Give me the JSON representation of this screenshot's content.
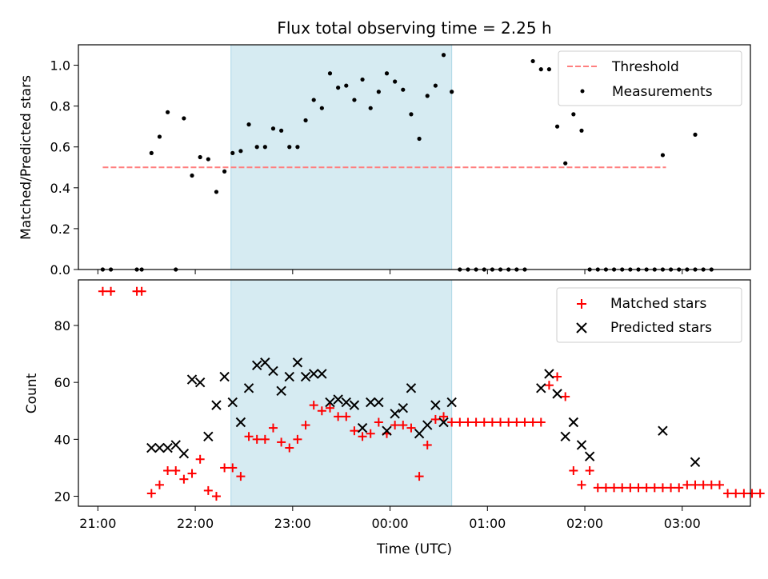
{
  "chart_data": [
    {
      "type": "scatter",
      "title": "Flux total observing time = 2.25 h",
      "ylabel": "Matched/Predicted stars",
      "xlabel": "",
      "ylim": [
        0,
        1.1
      ],
      "xlim": [
        20.8,
        3.7
      ],
      "yticks": [
        {
          "value": 0.0,
          "label": "0.0"
        },
        {
          "value": 0.2,
          "label": "0.2"
        },
        {
          "value": 0.4,
          "label": "0.4"
        },
        {
          "value": 0.6,
          "label": "0.6"
        },
        {
          "value": 0.8,
          "label": "0.8"
        },
        {
          "value": 1.0,
          "label": "1.0"
        }
      ],
      "shaded_span": {
        "x0": "22:22",
        "x1": "00:38",
        "color": "#add8e6"
      },
      "legend": {
        "position": "top-right",
        "entries": [
          "Threshold",
          "Measurements"
        ]
      },
      "series": [
        {
          "name": "Threshold",
          "style": "dashed-line",
          "color": "#ff7f7f",
          "points": [
            [
              "21:03",
              0.5
            ],
            [
              "02:50",
              0.5
            ]
          ]
        },
        {
          "name": "Measurements",
          "style": "dots",
          "color": "#000000",
          "points": [
            [
              "21:03",
              0.0
            ],
            [
              "21:08",
              0.0
            ],
            [
              "21:24",
              0.0
            ],
            [
              "21:27",
              0.0
            ],
            [
              "21:48",
              0.0
            ],
            [
              "21:33",
              0.57
            ],
            [
              "21:38",
              0.65
            ],
            [
              "21:43",
              0.77
            ],
            [
              "21:53",
              0.74
            ],
            [
              "21:58",
              0.46
            ],
            [
              "22:03",
              0.55
            ],
            [
              "22:08",
              0.54
            ],
            [
              "22:13",
              0.38
            ],
            [
              "22:18",
              0.48
            ],
            [
              "22:23",
              0.57
            ],
            [
              "22:28",
              0.58
            ],
            [
              "22:33",
              0.71
            ],
            [
              "22:38",
              0.6
            ],
            [
              "22:43",
              0.6
            ],
            [
              "22:48",
              0.69
            ],
            [
              "22:53",
              0.68
            ],
            [
              "22:58",
              0.6
            ],
            [
              "23:03",
              0.6
            ],
            [
              "23:08",
              0.73
            ],
            [
              "23:13",
              0.83
            ],
            [
              "23:18",
              0.79
            ],
            [
              "23:23",
              0.96
            ],
            [
              "23:28",
              0.89
            ],
            [
              "23:33",
              0.9
            ],
            [
              "23:38",
              0.83
            ],
            [
              "23:43",
              0.93
            ],
            [
              "23:48",
              0.79
            ],
            [
              "23:53",
              0.87
            ],
            [
              "23:58",
              0.96
            ],
            [
              "00:03",
              0.92
            ],
            [
              "00:08",
              0.88
            ],
            [
              "00:13",
              0.76
            ],
            [
              "00:18",
              0.64
            ],
            [
              "00:23",
              0.85
            ],
            [
              "00:28",
              0.9
            ],
            [
              "00:33",
              1.05
            ],
            [
              "00:38",
              0.87
            ],
            [
              "00:43",
              0.0
            ],
            [
              "00:48",
              0.0
            ],
            [
              "00:53",
              0.0
            ],
            [
              "00:58",
              0.0
            ],
            [
              "01:03",
              0.0
            ],
            [
              "01:08",
              0.0
            ],
            [
              "01:13",
              0.0
            ],
            [
              "01:18",
              0.0
            ],
            [
              "01:23",
              0.0
            ],
            [
              "01:28",
              1.02
            ],
            [
              "01:33",
              0.98
            ],
            [
              "01:38",
              0.98
            ],
            [
              "01:43",
              0.7
            ],
            [
              "01:48",
              0.52
            ],
            [
              "01:53",
              0.76
            ],
            [
              "01:58",
              0.68
            ],
            [
              "02:03",
              0.0
            ],
            [
              "02:08",
              0.0
            ],
            [
              "02:13",
              0.0
            ],
            [
              "02:18",
              0.0
            ],
            [
              "02:23",
              0.0
            ],
            [
              "02:28",
              0.0
            ],
            [
              "02:33",
              0.0
            ],
            [
              "02:38",
              0.0
            ],
            [
              "02:43",
              0.0
            ],
            [
              "02:48",
              0.0
            ],
            [
              "02:53",
              0.0
            ],
            [
              "02:58",
              0.0
            ],
            [
              "03:03",
              0.0
            ],
            [
              "03:08",
              0.0
            ],
            [
              "03:13",
              0.0
            ],
            [
              "03:18",
              0.0
            ],
            [
              "02:48",
              0.56
            ],
            [
              "03:08",
              0.66
            ]
          ]
        }
      ]
    },
    {
      "type": "scatter",
      "title": "",
      "ylabel": "Count",
      "xlabel": "Time (UTC)",
      "ylim": [
        16.5,
        96
      ],
      "xlim": [
        20.8,
        3.7
      ],
      "xticks": [
        "21:00",
        "22:00",
        "23:00",
        "00:00",
        "01:00",
        "02:00",
        "03:00"
      ],
      "yticks": [
        {
          "value": 20,
          "label": "20"
        },
        {
          "value": 40,
          "label": "40"
        },
        {
          "value": 60,
          "label": "60"
        },
        {
          "value": 80,
          "label": "80"
        }
      ],
      "shaded_span": {
        "x0": "22:22",
        "x1": "00:38",
        "color": "#add8e6"
      },
      "legend": {
        "position": "top-right",
        "entries": [
          "Matched stars",
          "Predicted stars"
        ]
      },
      "series": [
        {
          "name": "Matched stars",
          "marker": "plus",
          "color": "#ff0000",
          "points": [
            [
              "21:03",
              92
            ],
            [
              "21:08",
              92
            ],
            [
              "21:24",
              92
            ],
            [
              "21:27",
              92
            ],
            [
              "21:33",
              21
            ],
            [
              "21:38",
              24
            ],
            [
              "21:43",
              29
            ],
            [
              "21:48",
              29
            ],
            [
              "21:53",
              26
            ],
            [
              "21:58",
              28
            ],
            [
              "22:03",
              33
            ],
            [
              "22:08",
              22
            ],
            [
              "22:13",
              20
            ],
            [
              "22:18",
              30
            ],
            [
              "22:23",
              30
            ],
            [
              "22:28",
              27
            ],
            [
              "22:33",
              41
            ],
            [
              "22:38",
              40
            ],
            [
              "22:43",
              40
            ],
            [
              "22:48",
              44
            ],
            [
              "22:53",
              39
            ],
            [
              "22:58",
              37
            ],
            [
              "23:03",
              40
            ],
            [
              "23:08",
              45
            ],
            [
              "23:13",
              52
            ],
            [
              "23:18",
              50
            ],
            [
              "23:23",
              51
            ],
            [
              "23:28",
              48
            ],
            [
              "23:33",
              48
            ],
            [
              "23:38",
              43
            ],
            [
              "23:43",
              41
            ],
            [
              "23:48",
              42
            ],
            [
              "23:53",
              46
            ],
            [
              "23:58",
              42
            ],
            [
              "00:03",
              45
            ],
            [
              "00:08",
              45
            ],
            [
              "00:13",
              44
            ],
            [
              "00:18",
              27
            ],
            [
              "00:23",
              38
            ],
            [
              "00:28",
              47
            ],
            [
              "00:33",
              48
            ],
            [
              "00:38",
              46
            ],
            [
              "00:43",
              46
            ],
            [
              "00:48",
              46
            ],
            [
              "00:53",
              46
            ],
            [
              "00:58",
              46
            ],
            [
              "01:03",
              46
            ],
            [
              "01:08",
              46
            ],
            [
              "01:13",
              46
            ],
            [
              "01:18",
              46
            ],
            [
              "01:23",
              46
            ],
            [
              "01:28",
              46
            ],
            [
              "01:33",
              46
            ],
            [
              "01:38",
              59
            ],
            [
              "01:43",
              62
            ],
            [
              "01:48",
              55
            ],
            [
              "01:53",
              29
            ],
            [
              "01:58",
              24
            ],
            [
              "02:03",
              29
            ],
            [
              "02:08",
              23
            ],
            [
              "02:13",
              23
            ],
            [
              "02:18",
              23
            ],
            [
              "02:23",
              23
            ],
            [
              "02:28",
              23
            ],
            [
              "02:33",
              23
            ],
            [
              "02:38",
              23
            ],
            [
              "02:43",
              23
            ],
            [
              "02:48",
              23
            ],
            [
              "02:53",
              23
            ],
            [
              "02:58",
              23
            ],
            [
              "03:03",
              24
            ],
            [
              "03:08",
              24
            ],
            [
              "03:13",
              24
            ],
            [
              "03:18",
              24
            ],
            [
              "03:23",
              24
            ],
            [
              "03:28",
              21
            ],
            [
              "03:33",
              21
            ],
            [
              "03:38",
              21
            ],
            [
              "03:43",
              21
            ],
            [
              "03:48",
              21
            ]
          ]
        },
        {
          "name": "Predicted stars",
          "marker": "x",
          "color": "#000000",
          "points": [
            [
              "21:33",
              37
            ],
            [
              "21:38",
              37
            ],
            [
              "21:43",
              37
            ],
            [
              "21:48",
              38
            ],
            [
              "21:53",
              35
            ],
            [
              "21:58",
              61
            ],
            [
              "22:03",
              60
            ],
            [
              "22:08",
              41
            ],
            [
              "22:13",
              52
            ],
            [
              "22:18",
              62
            ],
            [
              "22:23",
              53
            ],
            [
              "22:28",
              46
            ],
            [
              "22:33",
              58
            ],
            [
              "22:38",
              66
            ],
            [
              "22:43",
              67
            ],
            [
              "22:48",
              64
            ],
            [
              "22:53",
              57
            ],
            [
              "22:58",
              62
            ],
            [
              "23:03",
              67
            ],
            [
              "23:08",
              62
            ],
            [
              "23:13",
              63
            ],
            [
              "23:18",
              63
            ],
            [
              "23:23",
              53
            ],
            [
              "23:28",
              54
            ],
            [
              "23:33",
              53
            ],
            [
              "23:38",
              52
            ],
            [
              "23:43",
              44
            ],
            [
              "23:48",
              53
            ],
            [
              "23:53",
              53
            ],
            [
              "23:58",
              43
            ],
            [
              "00:03",
              49
            ],
            [
              "00:08",
              51
            ],
            [
              "00:13",
              58
            ],
            [
              "00:18",
              42
            ],
            [
              "00:23",
              45
            ],
            [
              "00:28",
              52
            ],
            [
              "00:33",
              46
            ],
            [
              "00:38",
              53
            ],
            [
              "01:33",
              58
            ],
            [
              "01:38",
              63
            ],
            [
              "01:43",
              56
            ],
            [
              "01:48",
              41
            ],
            [
              "01:53",
              46
            ],
            [
              "01:58",
              38
            ],
            [
              "02:03",
              34
            ],
            [
              "02:48",
              43
            ],
            [
              "03:08",
              32
            ]
          ]
        }
      ]
    }
  ]
}
